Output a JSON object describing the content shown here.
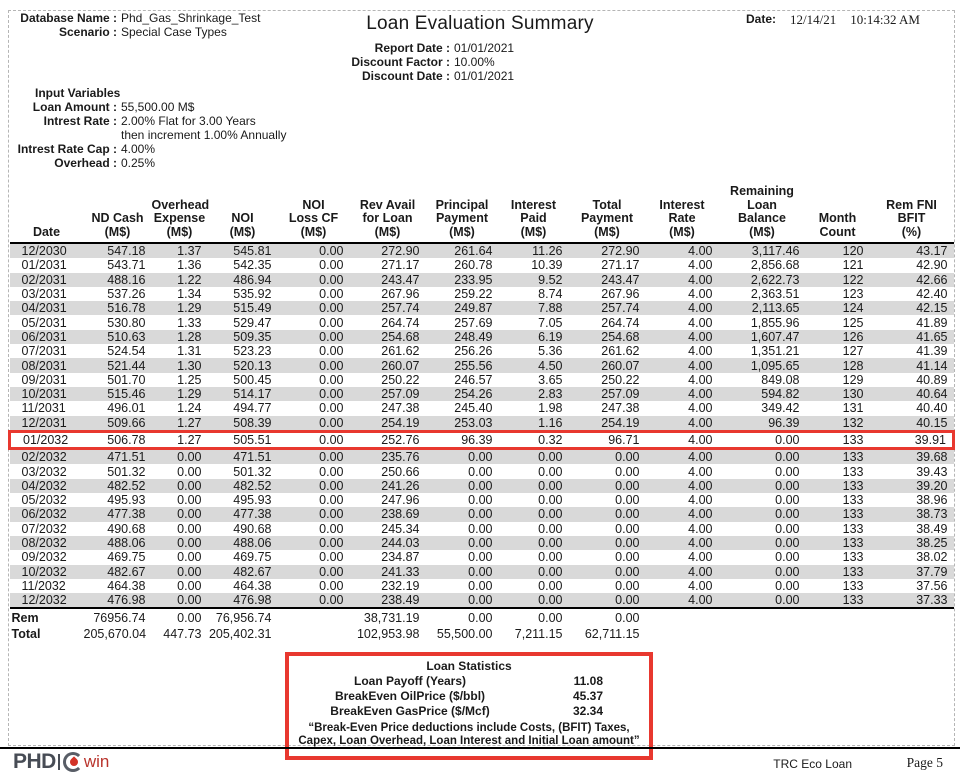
{
  "header": {
    "database_name_label": "Database Name :",
    "database_name": "Phd_Gas_Shrinkage_Test",
    "scenario_label": "Scenario :",
    "scenario": "Special Case Types",
    "title": "Loan Evaluation Summary",
    "report_date_label": "Report Date :",
    "report_date": "01/01/2021",
    "discount_factor_label": "Discount Factor :",
    "discount_factor": "10.00%",
    "discount_date_label": "Discount Date :",
    "discount_date": "01/01/2021",
    "date_label": "Date:",
    "date_value": "12/14/21",
    "time_value": "10:14:32 AM"
  },
  "input_variables": {
    "heading": "Input Variables",
    "rows": [
      {
        "label": "Loan Amount :",
        "value": "55,500.00 M$"
      },
      {
        "label": "Intrest Rate :",
        "value": "2.00% Flat for 3.00 Years",
        "value2": "then increment 1.00% Annually"
      },
      {
        "label": "Intrest Rate Cap :",
        "value": "4.00%"
      },
      {
        "label": "Overhead :",
        "value": "0.25%"
      }
    ]
  },
  "table": {
    "columns": [
      [
        "Date"
      ],
      [
        "ND Cash",
        "(M$)"
      ],
      [
        "Overhead",
        "Expense",
        "(M$)"
      ],
      [
        "NOI",
        "(M$)"
      ],
      [
        "NOI",
        "Loss CF",
        "(M$)"
      ],
      [
        "Rev Avail",
        "for Loan",
        "(M$)"
      ],
      [
        "Principal",
        "Payment",
        "(M$)"
      ],
      [
        "Interest",
        "Paid",
        "(M$)"
      ],
      [
        "Total",
        "Payment",
        "(M$)"
      ],
      [
        "Interest",
        "Rate",
        "(M$)"
      ],
      [
        "Remaining",
        "Loan",
        "Balance",
        "(M$)"
      ],
      [
        "Month",
        "Count"
      ],
      [
        "Rem FNI",
        "BFIT",
        "(%)"
      ]
    ],
    "highlight_row": "01/2032",
    "rows": [
      [
        "12/2030",
        "547.18",
        "1.37",
        "545.81",
        "0.00",
        "272.90",
        "261.64",
        "11.26",
        "272.90",
        "4.00",
        "3,117.46",
        "120",
        "43.17"
      ],
      [
        "01/2031",
        "543.71",
        "1.36",
        "542.35",
        "0.00",
        "271.17",
        "260.78",
        "10.39",
        "271.17",
        "4.00",
        "2,856.68",
        "121",
        "42.90"
      ],
      [
        "02/2031",
        "488.16",
        "1.22",
        "486.94",
        "0.00",
        "243.47",
        "233.95",
        "9.52",
        "243.47",
        "4.00",
        "2,622.73",
        "122",
        "42.66"
      ],
      [
        "03/2031",
        "537.26",
        "1.34",
        "535.92",
        "0.00",
        "267.96",
        "259.22",
        "8.74",
        "267.96",
        "4.00",
        "2,363.51",
        "123",
        "42.40"
      ],
      [
        "04/2031",
        "516.78",
        "1.29",
        "515.49",
        "0.00",
        "257.74",
        "249.87",
        "7.88",
        "257.74",
        "4.00",
        "2,113.65",
        "124",
        "42.15"
      ],
      [
        "05/2031",
        "530.80",
        "1.33",
        "529.47",
        "0.00",
        "264.74",
        "257.69",
        "7.05",
        "264.74",
        "4.00",
        "1,855.96",
        "125",
        "41.89"
      ],
      [
        "06/2031",
        "510.63",
        "1.28",
        "509.35",
        "0.00",
        "254.68",
        "248.49",
        "6.19",
        "254.68",
        "4.00",
        "1,607.47",
        "126",
        "41.65"
      ],
      [
        "07/2031",
        "524.54",
        "1.31",
        "523.23",
        "0.00",
        "261.62",
        "256.26",
        "5.36",
        "261.62",
        "4.00",
        "1,351.21",
        "127",
        "41.39"
      ],
      [
        "08/2031",
        "521.44",
        "1.30",
        "520.13",
        "0.00",
        "260.07",
        "255.56",
        "4.50",
        "260.07",
        "4.00",
        "1,095.65",
        "128",
        "41.14"
      ],
      [
        "09/2031",
        "501.70",
        "1.25",
        "500.45",
        "0.00",
        "250.22",
        "246.57",
        "3.65",
        "250.22",
        "4.00",
        "849.08",
        "129",
        "40.89"
      ],
      [
        "10/2031",
        "515.46",
        "1.29",
        "514.17",
        "0.00",
        "257.09",
        "254.26",
        "2.83",
        "257.09",
        "4.00",
        "594.82",
        "130",
        "40.64"
      ],
      [
        "11/2031",
        "496.01",
        "1.24",
        "494.77",
        "0.00",
        "247.38",
        "245.40",
        "1.98",
        "247.38",
        "4.00",
        "349.42",
        "131",
        "40.40"
      ],
      [
        "12/2031",
        "509.66",
        "1.27",
        "508.39",
        "0.00",
        "254.19",
        "253.03",
        "1.16",
        "254.19",
        "4.00",
        "96.39",
        "132",
        "40.15"
      ],
      [
        "01/2032",
        "506.78",
        "1.27",
        "505.51",
        "0.00",
        "252.76",
        "96.39",
        "0.32",
        "96.71",
        "4.00",
        "0.00",
        "133",
        "39.91"
      ],
      [
        "02/2032",
        "471.51",
        "0.00",
        "471.51",
        "0.00",
        "235.76",
        "0.00",
        "0.00",
        "0.00",
        "4.00",
        "0.00",
        "133",
        "39.68"
      ],
      [
        "03/2032",
        "501.32",
        "0.00",
        "501.32",
        "0.00",
        "250.66",
        "0.00",
        "0.00",
        "0.00",
        "4.00",
        "0.00",
        "133",
        "39.43"
      ],
      [
        "04/2032",
        "482.52",
        "0.00",
        "482.52",
        "0.00",
        "241.26",
        "0.00",
        "0.00",
        "0.00",
        "4.00",
        "0.00",
        "133",
        "39.20"
      ],
      [
        "05/2032",
        "495.93",
        "0.00",
        "495.93",
        "0.00",
        "247.96",
        "0.00",
        "0.00",
        "0.00",
        "4.00",
        "0.00",
        "133",
        "38.96"
      ],
      [
        "06/2032",
        "477.38",
        "0.00",
        "477.38",
        "0.00",
        "238.69",
        "0.00",
        "0.00",
        "0.00",
        "4.00",
        "0.00",
        "133",
        "38.73"
      ],
      [
        "07/2032",
        "490.68",
        "0.00",
        "490.68",
        "0.00",
        "245.34",
        "0.00",
        "0.00",
        "0.00",
        "4.00",
        "0.00",
        "133",
        "38.49"
      ],
      [
        "08/2032",
        "488.06",
        "0.00",
        "488.06",
        "0.00",
        "244.03",
        "0.00",
        "0.00",
        "0.00",
        "4.00",
        "0.00",
        "133",
        "38.25"
      ],
      [
        "09/2032",
        "469.75",
        "0.00",
        "469.75",
        "0.00",
        "234.87",
        "0.00",
        "0.00",
        "0.00",
        "4.00",
        "0.00",
        "133",
        "38.02"
      ],
      [
        "10/2032",
        "482.67",
        "0.00",
        "482.67",
        "0.00",
        "241.33",
        "0.00",
        "0.00",
        "0.00",
        "4.00",
        "0.00",
        "133",
        "37.79"
      ],
      [
        "11/2032",
        "464.38",
        "0.00",
        "464.38",
        "0.00",
        "232.19",
        "0.00",
        "0.00",
        "0.00",
        "4.00",
        "0.00",
        "133",
        "37.56"
      ],
      [
        "12/2032",
        "476.98",
        "0.00",
        "476.98",
        "0.00",
        "238.49",
        "0.00",
        "0.00",
        "0.00",
        "4.00",
        "0.00",
        "133",
        "37.33"
      ]
    ],
    "summary_rows": [
      [
        "Rem",
        "76956.74",
        "0.00",
        "76,956.74",
        "",
        "38,731.19",
        "0.00",
        "0.00",
        "0.00",
        "",
        "",
        "",
        ""
      ],
      [
        "Total",
        "205,670.04",
        "447.73",
        "205,402.31",
        "",
        "102,953.98",
        "55,500.00",
        "7,211.15",
        "62,711.15",
        "",
        "",
        "",
        ""
      ]
    ]
  },
  "loan_statistics": {
    "title": "Loan Statistics",
    "rows": [
      {
        "label": "Loan Payoff (Years)",
        "value": "11.08"
      },
      {
        "label": "BreakEven OilPrice ($/bbl)",
        "value": "45.37"
      },
      {
        "label": "BreakEven GasPrice ($/Mcf)",
        "value": "32.34"
      }
    ],
    "note_line1": "“Break-Even Price deductions include Costs, (BFIT) Taxes,",
    "note_line2": "Capex, Loan Overhead, Loan Interest and Initial Loan amount”"
  },
  "footer": {
    "logo_phd": "PHD",
    "logo_win": "win",
    "report_name": "TRC Eco Loan",
    "page_label": "Page 5"
  },
  "colors": {
    "accent_red": "#e8382f",
    "zebra_gray": "#d9d9d9",
    "logo_dark": "#474c55",
    "logo_red": "#b9342c"
  }
}
